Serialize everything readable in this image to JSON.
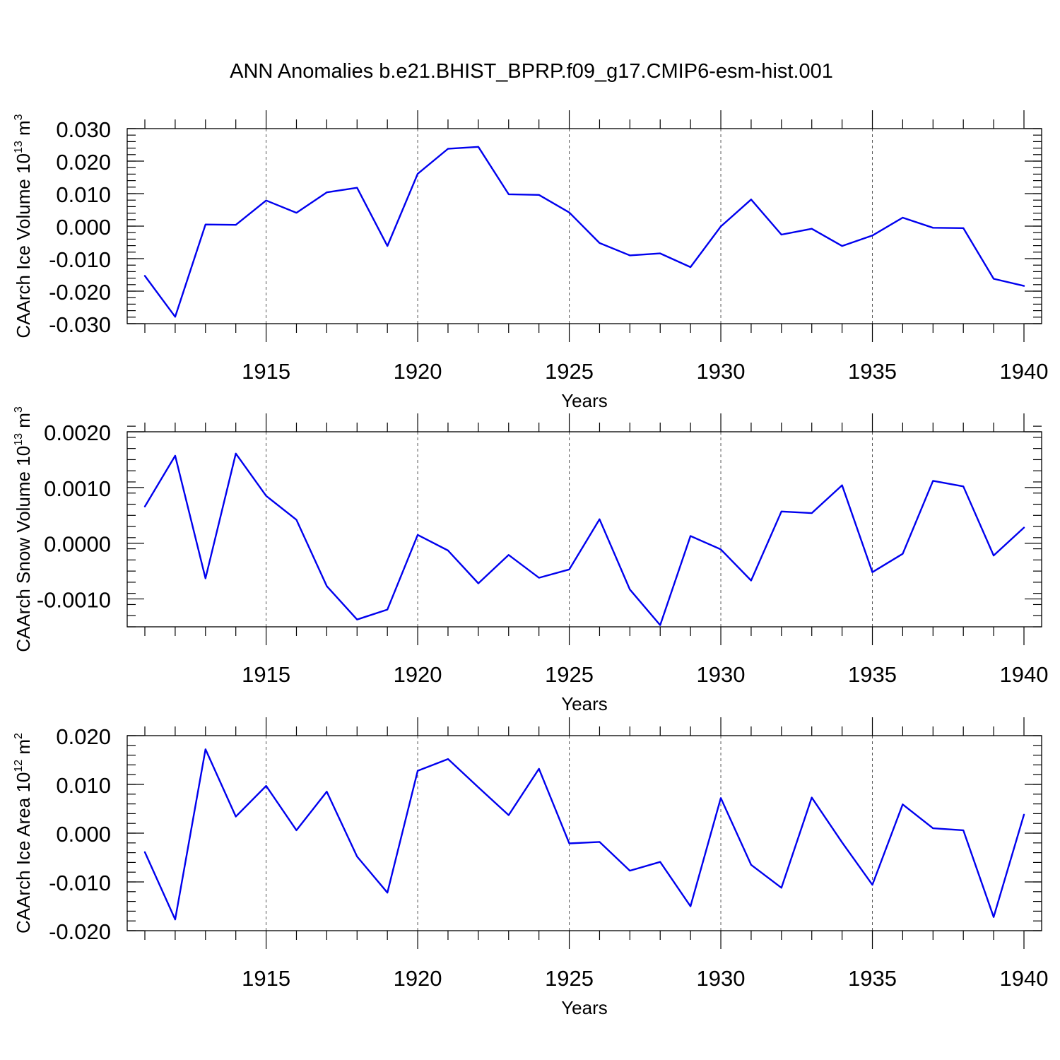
{
  "title": "ANN Anomalies b.e21.BHIST_BPRP.f09_g17.CMIP6-esm-hist.001",
  "colors": {
    "line": "#0000ee",
    "axis": "#000000",
    "grid": "#555555"
  },
  "chart_data": [
    {
      "type": "line",
      "ylabel": "CAArch Ice Volume 10",
      "ylabel_sup": "13",
      "ylabel_unit": "m",
      "ylabel_unit_sup": "3",
      "xlabel": "Years",
      "xlim": [
        1911,
        1940
      ],
      "ylim": [
        -0.03,
        0.03
      ],
      "y_ticks": [
        -0.03,
        -0.02,
        -0.01,
        0.0,
        0.01,
        0.02,
        0.03
      ],
      "y_tick_labels": [
        "-0.030",
        "-0.020",
        "-0.010",
        "0.000",
        "0.010",
        "0.020",
        "0.030"
      ],
      "x_ticks": [
        1915,
        1920,
        1925,
        1930,
        1935,
        1940
      ],
      "x_tick_labels": [
        "1915",
        "1920",
        "1925",
        "1930",
        "1935",
        "1940"
      ],
      "grid": "vertical dashed at labeled years",
      "x": [
        1911,
        1912,
        1913,
        1914,
        1915,
        1916,
        1917,
        1918,
        1919,
        1920,
        1921,
        1922,
        1923,
        1924,
        1925,
        1926,
        1927,
        1928,
        1929,
        1930,
        1931,
        1932,
        1933,
        1934,
        1935,
        1936,
        1937,
        1938,
        1939,
        1940
      ],
      "values": [
        -0.0153,
        -0.0279,
        0.0005,
        0.0004,
        0.0079,
        0.0041,
        0.0104,
        0.0118,
        -0.0061,
        0.0161,
        0.0238,
        0.0244,
        0.0098,
        0.0096,
        0.0042,
        -0.0052,
        -0.009,
        -0.0084,
        -0.0126,
        -0.0001,
        0.0082,
        -0.0026,
        -0.0008,
        -0.0061,
        -0.0029,
        0.0026,
        -0.0005,
        -0.0006,
        -0.0162,
        -0.0184
      ]
    },
    {
      "type": "line",
      "ylabel": "CAArch Snow Volume 10",
      "ylabel_sup": "13",
      "ylabel_unit": "m",
      "ylabel_unit_sup": "3",
      "xlabel": "Years",
      "xlim": [
        1911,
        1940
      ],
      "ylim": [
        -0.0015,
        0.002
      ],
      "y_ticks": [
        -0.001,
        0.0,
        0.001,
        0.002
      ],
      "y_tick_labels": [
        "-0.0010",
        "0.0000",
        "0.0010",
        "0.0020"
      ],
      "x_ticks": [
        1915,
        1920,
        1925,
        1930,
        1935,
        1940
      ],
      "x_tick_labels": [
        "1915",
        "1920",
        "1925",
        "1930",
        "1935",
        "1940"
      ],
      "grid": "vertical dashed at labeled years",
      "x": [
        1911,
        1912,
        1913,
        1914,
        1915,
        1916,
        1917,
        1918,
        1919,
        1920,
        1921,
        1922,
        1923,
        1924,
        1925,
        1926,
        1927,
        1928,
        1929,
        1930,
        1931,
        1932,
        1933,
        1934,
        1935,
        1936,
        1937,
        1938,
        1939,
        1940
      ],
      "values": [
        0.00066,
        0.00157,
        -0.00063,
        0.00161,
        0.00085,
        0.00042,
        -0.00077,
        -0.00137,
        -0.00119,
        0.00015,
        -0.00013,
        -0.00072,
        -0.00021,
        -0.00062,
        -0.00047,
        0.00043,
        -0.00083,
        -0.00147,
        0.00013,
        -0.00011,
        -0.00067,
        0.00057,
        0.00054,
        0.00104,
        -0.00052,
        -0.00019,
        0.00112,
        0.00102,
        -0.00022,
        0.00028
      ]
    },
    {
      "type": "line",
      "ylabel": "CAArch Ice Area 10",
      "ylabel_sup": "12",
      "ylabel_unit": "m",
      "ylabel_unit_sup": "2",
      "xlabel": "Years",
      "xlim": [
        1911,
        1940
      ],
      "ylim": [
        -0.02,
        0.02
      ],
      "y_ticks": [
        -0.02,
        -0.01,
        0.0,
        0.01,
        0.02
      ],
      "y_tick_labels": [
        "-0.020",
        "-0.010",
        "0.000",
        "0.010",
        "0.020"
      ],
      "x_ticks": [
        1915,
        1920,
        1925,
        1930,
        1935,
        1940
      ],
      "x_tick_labels": [
        "1915",
        "1920",
        "1925",
        "1930",
        "1935",
        "1940"
      ],
      "grid": "vertical dashed at labeled years",
      "x": [
        1911,
        1912,
        1913,
        1914,
        1915,
        1916,
        1917,
        1918,
        1919,
        1920,
        1921,
        1922,
        1923,
        1924,
        1925,
        1926,
        1927,
        1928,
        1929,
        1930,
        1931,
        1932,
        1933,
        1934,
        1935,
        1936,
        1937,
        1938,
        1939,
        1940
      ],
      "values": [
        -0.0039,
        -0.0177,
        0.0172,
        0.0034,
        0.0097,
        0.0006,
        0.0085,
        -0.0048,
        -0.0122,
        0.0128,
        0.0152,
        0.0094,
        0.0037,
        0.0132,
        -0.0021,
        -0.0018,
        -0.0077,
        -0.0059,
        -0.015,
        0.0072,
        -0.0065,
        -0.0112,
        0.0073,
        -0.0019,
        -0.0106,
        0.0059,
        0.001,
        0.0006,
        -0.0172,
        0.0038
      ]
    }
  ]
}
